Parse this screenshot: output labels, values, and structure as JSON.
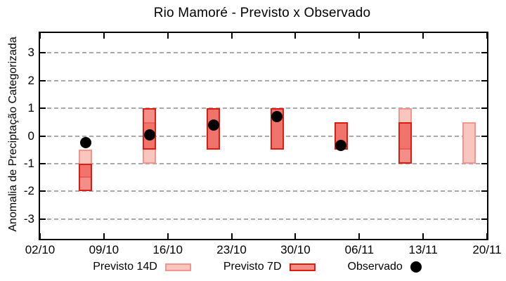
{
  "chart_data": {
    "type": "candlestick",
    "title": "Rio Mamoré - Previsto x Observado",
    "ylabel": "Anomalia de Preciptação Categorizada",
    "xlabel": "",
    "ylim": [
      -3.71,
      3.71
    ],
    "yticks": [
      3,
      2,
      1,
      0,
      -1,
      -2,
      -3
    ],
    "grid": "dashed-horizontal-gray",
    "legend_position": "bottom-center",
    "x_days": 49,
    "xticks": [
      {
        "day": 0,
        "label": "02/10"
      },
      {
        "day": 7,
        "label": "09/10"
      },
      {
        "day": 14,
        "label": "16/10"
      },
      {
        "day": 21,
        "label": "23/10"
      },
      {
        "day": 28,
        "label": "30/10"
      },
      {
        "day": 35,
        "label": "06/11"
      },
      {
        "day": 42,
        "label": "13/11"
      },
      {
        "day": 49,
        "label": "20/11"
      }
    ],
    "series": [
      {
        "name": "Previsto 14D",
        "type": "range-bar",
        "fill": "#f9c6bf",
        "border": "#f0968e"
      },
      {
        "name": "Previsto 7D",
        "type": "range-bar",
        "fill": "rgba(235,50,40,0.55)",
        "border": "#dd1c10"
      },
      {
        "name": "Observado",
        "type": "scatter",
        "fill": "#000000"
      }
    ],
    "points": [
      {
        "date": "07/10",
        "day": 5,
        "previsto_14d": [
          -1.5,
          -0.5
        ],
        "previsto_7d": [
          -2,
          -1
        ],
        "observado": -0.25
      },
      {
        "date": "14/10",
        "day": 12,
        "previsto_14d": [
          -1,
          0.5
        ],
        "previsto_7d": [
          -0.5,
          1
        ],
        "observado": 0.05
      },
      {
        "date": "21/10",
        "day": 19,
        "previsto_14d": [
          -0.5,
          1
        ],
        "previsto_7d": [
          -0.5,
          1
        ],
        "observado": 0.4
      },
      {
        "date": "28/10",
        "day": 26,
        "previsto_14d": [
          -0.5,
          1
        ],
        "previsto_7d": [
          -0.5,
          1
        ],
        "observado": 0.7
      },
      {
        "date": "04/11",
        "day": 33,
        "previsto_14d": [
          -0.5,
          0.5
        ],
        "previsto_7d": [
          -0.5,
          0.5
        ],
        "observado": -0.35
      },
      {
        "date": "11/11",
        "day": 40,
        "previsto_14d": [
          -0.5,
          1
        ],
        "previsto_7d": [
          -1,
          0.5
        ],
        "observado": null
      },
      {
        "date": "18/11",
        "day": 47,
        "previsto_14d": [
          -1,
          0.5
        ],
        "previsto_7d": null,
        "observado": null
      }
    ],
    "colors": {
      "previsto_14d_fill": "#f9c6bf",
      "previsto_14d_border": "#f0968e",
      "previsto_7d_fill_over_white": "#f58b82",
      "previsto_7d_overlap_fill": "#f26b62",
      "previsto_7d_border": "#dd1c10",
      "observado": "#000000",
      "gridline": "#a9a9a9",
      "frame": "#000000"
    }
  }
}
